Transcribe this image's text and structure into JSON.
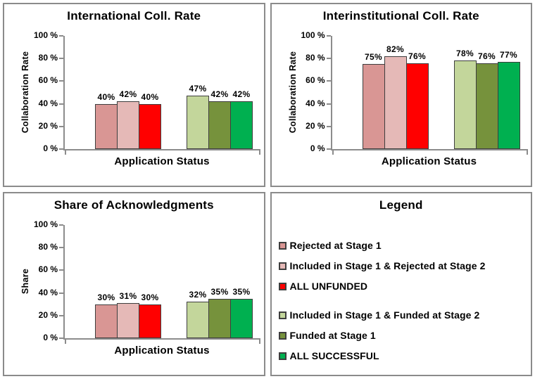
{
  "colors": {
    "axis": "#8C8C8C",
    "bar_border": "#3E3E3E",
    "panel_border": "#8B8B8B",
    "unfunded_1": "#D99694",
    "unfunded_2": "#E5B9B7",
    "unfunded_all": "#FF0000",
    "successful_1": "#C3D69B",
    "successful_2": "#76923C",
    "successful_all": "#00B050"
  },
  "legend": {
    "title": "Legend",
    "groups": [
      {
        "items": [
          {
            "label": "Rejected at Stage 1",
            "color": "#D99694"
          },
          {
            "label": "Included in Stage 1 & Rejected at Stage 2",
            "color": "#E5B9B7"
          },
          {
            "label": "ALL UNFUNDED",
            "color": "#FF0000"
          }
        ]
      },
      {
        "items": [
          {
            "label": "Included in Stage 1 & Funded at Stage 2",
            "color": "#C3D69B"
          },
          {
            "label": "Funded at Stage 1",
            "color": "#76923C"
          },
          {
            "label": "ALL SUCCESSFUL",
            "color": "#00B050"
          }
        ]
      }
    ]
  },
  "chart_data": [
    {
      "type": "bar",
      "title": "International Coll. Rate",
      "xlabel": "Application Status",
      "ylabel": "Collaboration Rate",
      "ylim": [
        0,
        100
      ],
      "grid": false,
      "yticks": [
        {
          "value": 0,
          "label": "0 %"
        },
        {
          "value": 20,
          "label": "20 %"
        },
        {
          "value": 40,
          "label": "40 %"
        },
        {
          "value": 60,
          "label": "60 %"
        },
        {
          "value": 80,
          "label": "80 %"
        },
        {
          "value": 100,
          "label": "100 %"
        }
      ],
      "series": [
        {
          "name": "Rejected at Stage 1",
          "value": 40,
          "label": "40%",
          "color": "#D99694"
        },
        {
          "name": "Included in Stage 1 & Rejected at Stage 2",
          "value": 42,
          "label": "42%",
          "color": "#E5B9B7"
        },
        {
          "name": "ALL UNFUNDED",
          "value": 40,
          "label": "40%",
          "color": "#FF0000"
        },
        {
          "name": "Included in Stage 1 & Funded at Stage 2",
          "value": 47,
          "label": "47%",
          "color": "#C3D69B"
        },
        {
          "name": "Funded at Stage 1",
          "value": 42,
          "label": "42%",
          "color": "#76923C"
        },
        {
          "name": "ALL SUCCESSFUL",
          "value": 42,
          "label": "42%",
          "color": "#00B050"
        }
      ]
    },
    {
      "type": "bar",
      "title": "Interinstitutional Coll. Rate",
      "xlabel": "Application Status",
      "ylabel": "Collaboration Rate",
      "ylim": [
        0,
        100
      ],
      "grid": false,
      "yticks": [
        {
          "value": 0,
          "label": "0 %"
        },
        {
          "value": 20,
          "label": "20 %"
        },
        {
          "value": 40,
          "label": "40 %"
        },
        {
          "value": 60,
          "label": "60 %"
        },
        {
          "value": 80,
          "label": "80 %"
        },
        {
          "value": 100,
          "label": "100 %"
        }
      ],
      "series": [
        {
          "name": "Rejected at Stage 1",
          "value": 75,
          "label": "75%",
          "color": "#D99694"
        },
        {
          "name": "Included in Stage 1 & Rejected at Stage 2",
          "value": 82,
          "label": "82%",
          "color": "#E5B9B7"
        },
        {
          "name": "ALL UNFUNDED",
          "value": 76,
          "label": "76%",
          "color": "#FF0000"
        },
        {
          "name": "Included in Stage 1 & Funded at Stage 2",
          "value": 78,
          "label": "78%",
          "color": "#C3D69B"
        },
        {
          "name": "Funded at Stage 1",
          "value": 76,
          "label": "76%",
          "color": "#76923C"
        },
        {
          "name": "ALL SUCCESSFUL",
          "value": 77,
          "label": "77%",
          "color": "#00B050"
        }
      ]
    },
    {
      "type": "bar",
      "title": "Share of Acknowledgments",
      "xlabel": "Application Status",
      "ylabel": "Share",
      "ylim": [
        0,
        100
      ],
      "grid": false,
      "yticks": [
        {
          "value": 0,
          "label": "0 %"
        },
        {
          "value": 20,
          "label": "20 %"
        },
        {
          "value": 40,
          "label": "40 %"
        },
        {
          "value": 60,
          "label": "60 %"
        },
        {
          "value": 80,
          "label": "80 %"
        },
        {
          "value": 100,
          "label": "100 %"
        }
      ],
      "series": [
        {
          "name": "Rejected at Stage 1",
          "value": 30,
          "label": "30%",
          "color": "#D99694"
        },
        {
          "name": "Included in Stage 1 & Rejected at Stage 2",
          "value": 31,
          "label": "31%",
          "color": "#E5B9B7"
        },
        {
          "name": "ALL UNFUNDED",
          "value": 30,
          "label": "30%",
          "color": "#FF0000"
        },
        {
          "name": "Included in Stage 1 & Funded at Stage 2",
          "value": 32,
          "label": "32%",
          "color": "#C3D69B"
        },
        {
          "name": "Funded at Stage 1",
          "value": 35,
          "label": "35%",
          "color": "#76923C"
        },
        {
          "name": "ALL SUCCESSFUL",
          "value": 35,
          "label": "35%",
          "color": "#00B050"
        }
      ]
    }
  ]
}
